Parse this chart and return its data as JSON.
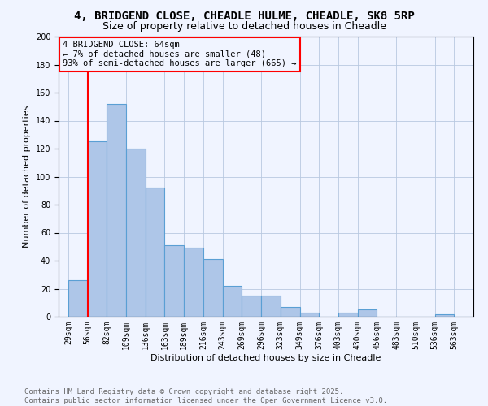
{
  "title": "4, BRIDGEND CLOSE, CHEADLE HULME, CHEADLE, SK8 5RP",
  "subtitle": "Size of property relative to detached houses in Cheadle",
  "xlabel": "Distribution of detached houses by size in Cheadle",
  "ylabel": "Number of detached properties",
  "bar_color": "#aec6e8",
  "bar_edgecolor": "#5a9fd4",
  "bar_linewidth": 0.8,
  "vline_x": 1,
  "vline_color": "red",
  "vline_linewidth": 1.5,
  "categories": [
    "29sqm",
    "56sqm",
    "82sqm",
    "109sqm",
    "136sqm",
    "163sqm",
    "189sqm",
    "216sqm",
    "243sqm",
    "269sqm",
    "296sqm",
    "323sqm",
    "349sqm",
    "376sqm",
    "403sqm",
    "430sqm",
    "456sqm",
    "483sqm",
    "510sqm",
    "536sqm",
    "563sqm"
  ],
  "values": [
    26,
    125,
    152,
    120,
    92,
    51,
    49,
    41,
    22,
    15,
    15,
    7,
    3,
    0,
    3,
    5,
    0,
    0,
    0,
    2,
    0
  ],
  "ylim": [
    0,
    200
  ],
  "yticks": [
    0,
    20,
    40,
    60,
    80,
    100,
    120,
    140,
    160,
    180,
    200
  ],
  "annotation_box_text": "4 BRIDGEND CLOSE: 64sqm\n← 7% of detached houses are smaller (48)\n93% of semi-detached houses are larger (665) →",
  "footer_text": "Contains HM Land Registry data © Crown copyright and database right 2025.\nContains public sector information licensed under the Open Government Licence v3.0.",
  "background_color": "#f0f4ff",
  "grid_color": "#b8c8e0",
  "title_fontsize": 10,
  "subtitle_fontsize": 9,
  "axis_label_fontsize": 8,
  "tick_fontsize": 7,
  "annotation_fontsize": 7.5,
  "footer_fontsize": 6.5
}
